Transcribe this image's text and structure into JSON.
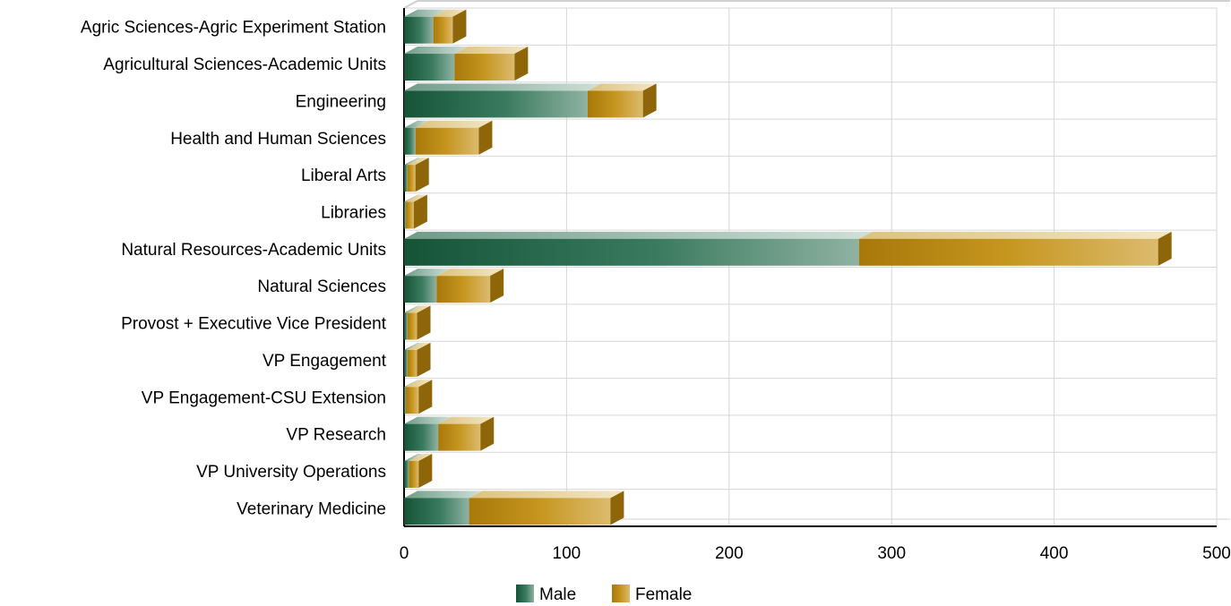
{
  "chart_data": {
    "type": "bar",
    "orientation": "horizontal",
    "stacked": true,
    "categories": [
      "Agric Sciences-Agric Experiment Station",
      "Agricultural Sciences-Academic Units",
      "Engineering",
      "Health and Human Sciences",
      "Liberal Arts",
      "Libraries",
      "Natural Resources-Academic Units",
      "Natural Sciences",
      "Provost + Executive Vice President",
      "VP Engagement",
      "VP Engagement-CSU Extension",
      "VP Research",
      "VP University Operations",
      "Veterinary Medicine"
    ],
    "series": [
      {
        "name": "Male",
        "color": "#1f5c42",
        "values": [
          18,
          31,
          113,
          7,
          2,
          1,
          280,
          20,
          2,
          2,
          1,
          21,
          3,
          40
        ]
      },
      {
        "name": "Female",
        "color": "#b8860b",
        "values": [
          12,
          37,
          34,
          39,
          5,
          5,
          184,
          33,
          6,
          6,
          8,
          26,
          6,
          87
        ]
      }
    ],
    "xlim": [
      0,
      500
    ],
    "xticks": [
      "0",
      "100",
      "200",
      "300",
      "400",
      "500"
    ],
    "title": "",
    "xlabel": "",
    "ylabel": "",
    "grid": true,
    "legend_position": "bottom"
  }
}
